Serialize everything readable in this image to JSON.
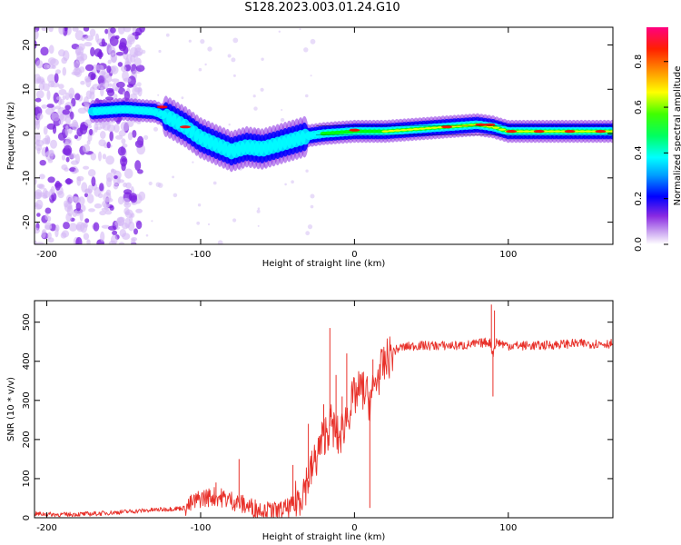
{
  "title": "S128.2023.003.01.24.G10",
  "chart_data": [
    {
      "type": "heatmap",
      "xlabel": "Height of straight line (km)",
      "ylabel": "Frequency (Hz)",
      "xlim": [
        -208,
        168
      ],
      "ylim": [
        -25,
        24
      ],
      "xticks": [
        -200,
        -100,
        0,
        100
      ],
      "yticks": [
        -20,
        -10,
        0,
        10,
        20
      ],
      "ridge_frequency_hz": {
        "x": [
          -170,
          -150,
          -130,
          -120,
          -110,
          -100,
          -90,
          -80,
          -70,
          -60,
          -50,
          -40,
          -30,
          -20,
          0,
          20,
          40,
          60,
          80,
          90,
          100,
          120,
          168
        ],
        "y": [
          5,
          5.5,
          5,
          3.5,
          1.5,
          -1,
          -2.5,
          -4,
          -3,
          -3.5,
          -2.5,
          -1.5,
          -0.5,
          0,
          0.5,
          0.5,
          1,
          1.5,
          2,
          1.5,
          0.5,
          0.5,
          0.5
        ]
      },
      "colorbar": {
        "label": "Normalized spectral amplitude",
        "ticks": [
          0.0,
          0.2,
          0.4,
          0.6,
          0.8
        ],
        "range": [
          0,
          0.95
        ],
        "colormap": [
          "#ffffff",
          "#8a2be2",
          "#0000ff",
          "#00ffff",
          "#00ff00",
          "#ffff00",
          "#ff8000",
          "#ff0000",
          "#ff0080"
        ]
      }
    },
    {
      "type": "line",
      "xlabel": "Height of straight line (km)",
      "ylabel": "SNR (10 * v/v)",
      "xlim": [
        -208,
        168
      ],
      "ylim": [
        0,
        555
      ],
      "xticks": [
        -200,
        -100,
        0,
        100
      ],
      "yticks": [
        0,
        100,
        200,
        300,
        400,
        500
      ],
      "color": "#e8312a",
      "series": [
        {
          "x": [
            -208,
            -190,
            -170,
            -150,
            -130,
            -110,
            -100,
            -90,
            -80,
            -70,
            -60,
            -50,
            -40,
            -35,
            -30,
            -25,
            -20,
            -15,
            -10,
            -5,
            0,
            5,
            10,
            15,
            20,
            25,
            30,
            40,
            50,
            60,
            70,
            80,
            88,
            90,
            92,
            100,
            110,
            120,
            140,
            160,
            168
          ],
          "y": [
            10,
            8,
            10,
            15,
            20,
            25,
            50,
            55,
            45,
            30,
            20,
            15,
            30,
            60,
            100,
            150,
            210,
            240,
            200,
            260,
            310,
            330,
            300,
            360,
            395,
            425,
            435,
            440,
            440,
            440,
            440,
            445,
            450,
            420,
            450,
            440,
            440,
            440,
            445,
            445,
            445
          ]
        }
      ],
      "spikes": {
        "x": [
          -90,
          -75,
          -40,
          -30,
          -20,
          -16,
          -12,
          -8,
          -5,
          10,
          12,
          89,
          90,
          91
        ],
        "y": [
          90,
          150,
          135,
          240,
          290,
          485,
          365,
          310,
          420,
          25,
          405,
          545,
          310,
          530
        ]
      }
    }
  ]
}
